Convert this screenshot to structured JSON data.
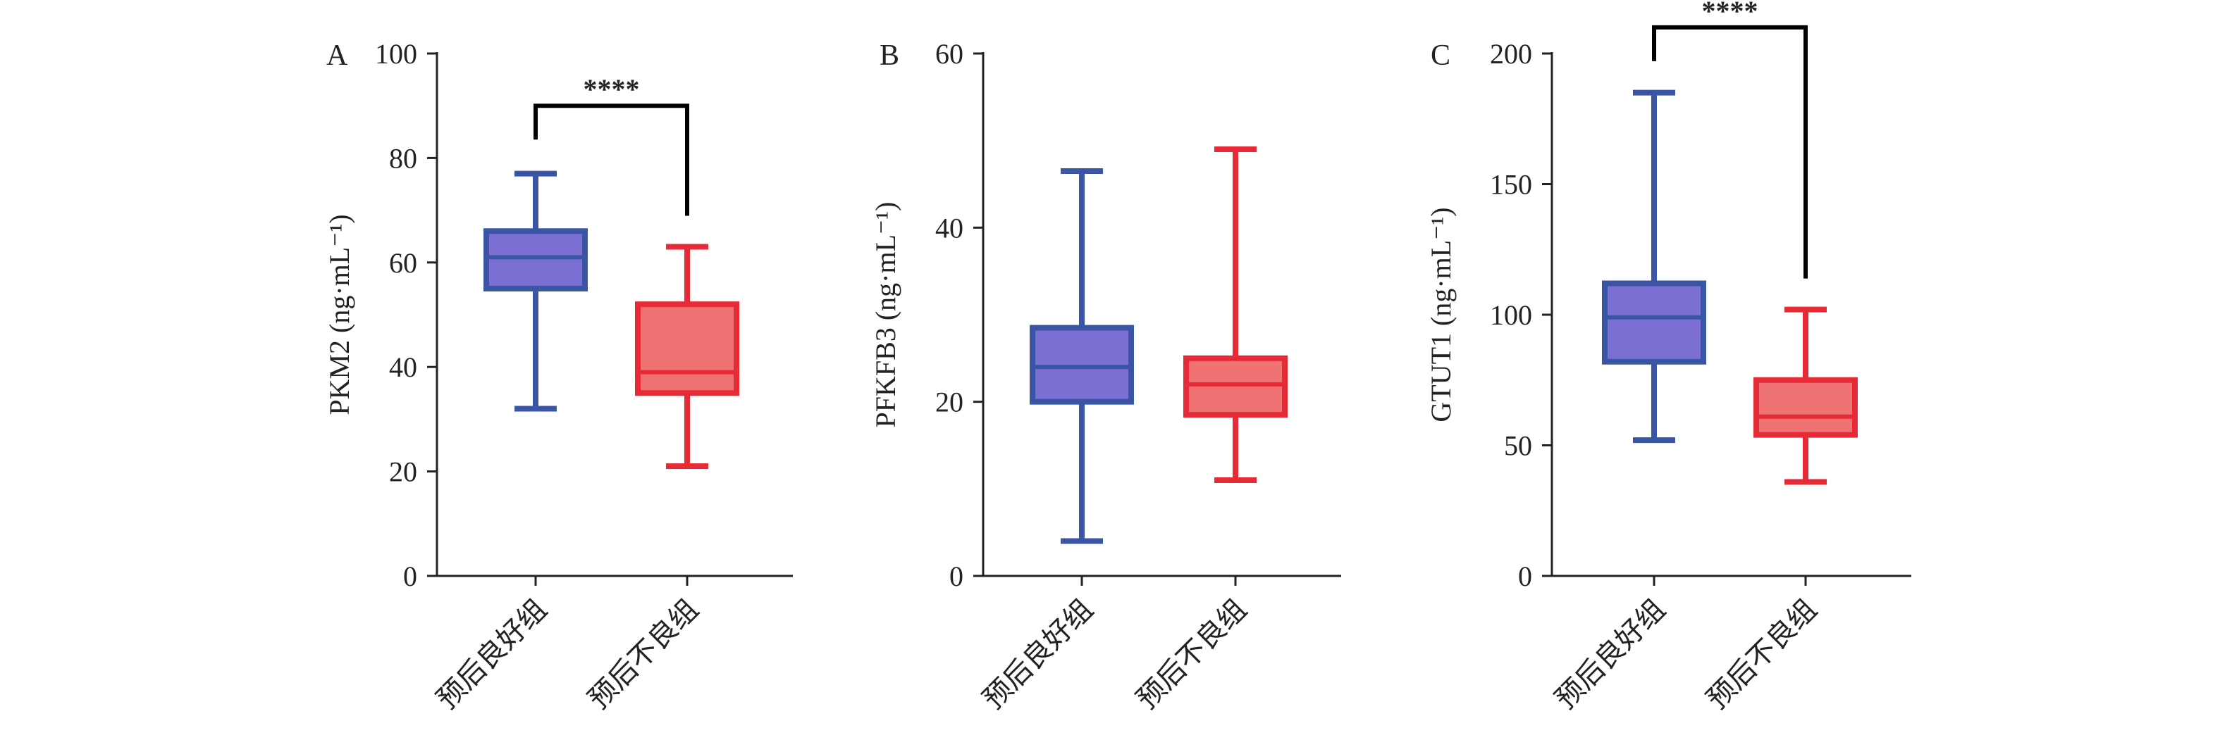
{
  "colors": {
    "good_edge": "#3a55a4",
    "good_fill": "#7b6fd3",
    "good_median": "#3a55a4",
    "poor_edge": "#e62a36",
    "poor_fill": "#ef7373",
    "poor_median": "#e62a36",
    "axis": "#222222",
    "bracket": "#000000"
  },
  "chart_data": [
    {
      "type": "box",
      "panel": "A",
      "ylabel": "PKM2 (ng·mL⁻¹)",
      "ylim": [
        0,
        100
      ],
      "yticks": [
        0,
        20,
        40,
        60,
        80,
        100
      ],
      "categories": [
        "预后良好组",
        "预后不良组"
      ],
      "boxes": [
        {
          "category": "预后良好组",
          "min": 32,
          "q1": 55,
          "median": 61,
          "q3": 66,
          "max": 77
        },
        {
          "category": "预后不良组",
          "min": 21,
          "q1": 35,
          "median": 39,
          "q3": 52,
          "max": 63
        }
      ],
      "significance": {
        "label": "****",
        "between": [
          "预后良好组",
          "预后不良组"
        ],
        "y": 90
      }
    },
    {
      "type": "box",
      "panel": "B",
      "ylabel": "PFKFB3 (ng·mL⁻¹)",
      "ylim": [
        0,
        60
      ],
      "yticks": [
        0,
        20,
        40,
        60
      ],
      "categories": [
        "预后良好组",
        "预后不良组"
      ],
      "boxes": [
        {
          "category": "预后良好组",
          "min": 4,
          "q1": 20,
          "median": 24,
          "q3": 28.5,
          "max": 46.5
        },
        {
          "category": "预后不良组",
          "min": 11,
          "q1": 18.5,
          "median": 22,
          "q3": 25,
          "max": 49
        }
      ],
      "significance": null
    },
    {
      "type": "box",
      "panel": "C",
      "ylabel": "GTUT1 (ng·mL⁻¹)",
      "ylim": [
        0,
        200
      ],
      "yticks": [
        0,
        50,
        100,
        150,
        200
      ],
      "categories": [
        "预后良好组",
        "预后不良组"
      ],
      "boxes": [
        {
          "category": "预后良好组",
          "min": 52,
          "q1": 82,
          "median": 99,
          "q3": 112,
          "max": 185
        },
        {
          "category": "预后不良组",
          "min": 36,
          "q1": 54,
          "median": 61,
          "q3": 75,
          "max": 102
        }
      ],
      "significance": {
        "label": "****",
        "between": [
          "预后良好组",
          "预后不良组"
        ],
        "y": 210
      }
    }
  ]
}
